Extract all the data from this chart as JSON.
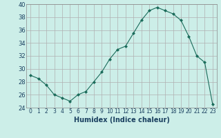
{
  "x": [
    0,
    1,
    2,
    3,
    4,
    5,
    6,
    7,
    8,
    9,
    10,
    11,
    12,
    13,
    14,
    15,
    16,
    17,
    18,
    19,
    20,
    21,
    22,
    23
  ],
  "y": [
    29.0,
    28.5,
    27.5,
    26.0,
    25.5,
    25.0,
    26.0,
    26.5,
    28.0,
    29.5,
    31.5,
    33.0,
    33.5,
    35.5,
    37.5,
    39.0,
    39.5,
    39.0,
    38.5,
    37.5,
    35.0,
    32.0,
    31.0,
    24.5
  ],
  "xlabel": "Humidex (Indice chaleur)",
  "ylim": [
    24,
    40
  ],
  "xlim_min": -0.5,
  "xlim_max": 23.5,
  "yticks": [
    24,
    26,
    28,
    30,
    32,
    34,
    36,
    38,
    40
  ],
  "xticks": [
    0,
    1,
    2,
    3,
    4,
    5,
    6,
    7,
    8,
    9,
    10,
    11,
    12,
    13,
    14,
    15,
    16,
    17,
    18,
    19,
    20,
    21,
    22,
    23
  ],
  "line_color": "#1a6b5a",
  "marker": "D",
  "marker_size": 2.5,
  "bg_color": "#cceee8",
  "grid_color": "#b0b0b0",
  "xlabel_color": "#1a4060",
  "xlabel_fontsize": 7,
  "tick_fontsize": 5.5,
  "ytick_fontsize": 6
}
